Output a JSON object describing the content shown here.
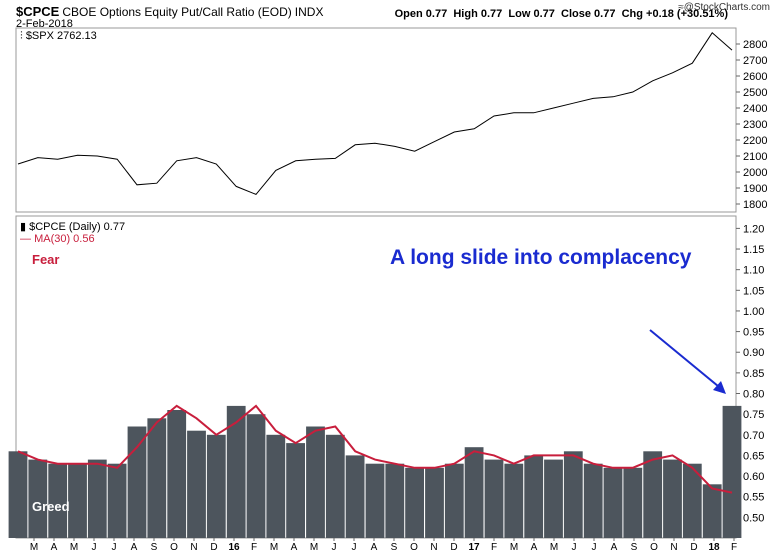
{
  "header": {
    "ticker": "$CPCE",
    "name": "CBOE Options Equity Put/Call Ratio (EOD)",
    "exchange": "INDX",
    "date": "2-Feb-2018",
    "open_label": "Open",
    "open_value": "0.77",
    "high_label": "High",
    "high_value": "0.77",
    "low_label": "Low",
    "low_value": "0.77",
    "close_label": "Close",
    "close_value": "0.77",
    "chg_label": "Chg",
    "chg_value": "+0.18 (+30.51%)",
    "brand": "@StockCharts.com",
    "brand_icon": "stockcharts-wave-icon"
  },
  "top_panel": {
    "legend": "$SPX 2762.13",
    "icon": "bars-icon",
    "line_color": "#000000"
  },
  "bottom_panel": {
    "legend_cpce": "$CPCE (Daily) 0.77",
    "legend_ma": "MA(30) 0.56",
    "icon": "bars-icon",
    "bar_color": "#4d555d",
    "ma_color": "#c81e3c",
    "annotation": "A long slide into complacency",
    "annotation_color": "#1a2bd0",
    "fear_label": "Fear",
    "greed_label": "Greed"
  },
  "x_axis": {
    "tick_labels": [
      "M",
      "A",
      "M",
      "J",
      "J",
      "A",
      "S",
      "O",
      "N",
      "D",
      "16",
      "F",
      "M",
      "A",
      "M",
      "J",
      "J",
      "A",
      "S",
      "O",
      "N",
      "D",
      "17",
      "F",
      "M",
      "A",
      "M",
      "J",
      "J",
      "A",
      "S",
      "O",
      "N",
      "D",
      "18",
      "F"
    ],
    "bold_labels": [
      "16",
      "17",
      "18"
    ]
  },
  "chart_data": [
    {
      "type": "line",
      "title": "$SPX 2762.13",
      "xlabel": "",
      "ylabel": "",
      "ylim": [
        1750,
        2900
      ],
      "yticks": [
        1800,
        1900,
        2000,
        2100,
        2200,
        2300,
        2400,
        2500,
        2600,
        2700,
        2800
      ],
      "grid": false,
      "x": [
        "2015-02",
        "2015-03",
        "2015-04",
        "2015-05",
        "2015-06",
        "2015-07",
        "2015-08",
        "2015-09",
        "2015-10",
        "2015-11",
        "2015-12",
        "2016-01",
        "2016-02",
        "2016-03",
        "2016-04",
        "2016-05",
        "2016-06",
        "2016-07",
        "2016-08",
        "2016-09",
        "2016-10",
        "2016-11",
        "2016-12",
        "2017-01",
        "2017-02",
        "2017-03",
        "2017-04",
        "2017-05",
        "2017-06",
        "2017-07",
        "2017-08",
        "2017-09",
        "2017-10",
        "2017-11",
        "2017-12",
        "2018-01",
        "2018-02"
      ],
      "series": [
        {
          "name": "$SPX",
          "values": [
            2050,
            2090,
            2080,
            2105,
            2100,
            2080,
            1920,
            1930,
            2070,
            2090,
            2050,
            1910,
            1860,
            2010,
            2070,
            2080,
            2085,
            2170,
            2180,
            2160,
            2130,
            2190,
            2250,
            2270,
            2350,
            2370,
            2370,
            2400,
            2430,
            2460,
            2470,
            2500,
            2570,
            2620,
            2680,
            2870,
            2762
          ]
        }
      ]
    },
    {
      "type": "bar",
      "title": "$CPCE (Daily) 0.77",
      "xlabel": "",
      "ylabel": "",
      "ylim": [
        0.45,
        1.23
      ],
      "yticks": [
        0.5,
        0.55,
        0.6,
        0.65,
        0.7,
        0.75,
        0.8,
        0.85,
        0.9,
        0.95,
        1.0,
        1.05,
        1.1,
        1.15,
        1.2
      ],
      "grid": false,
      "x": [
        "2015-02",
        "2015-03",
        "2015-04",
        "2015-05",
        "2015-06",
        "2015-07",
        "2015-08",
        "2015-09",
        "2015-10",
        "2015-11",
        "2015-12",
        "2016-01",
        "2016-02",
        "2016-03",
        "2016-04",
        "2016-05",
        "2016-06",
        "2016-07",
        "2016-08",
        "2016-09",
        "2016-10",
        "2016-11",
        "2016-12",
        "2017-01",
        "2017-02",
        "2017-03",
        "2017-04",
        "2017-05",
        "2017-06",
        "2017-07",
        "2017-08",
        "2017-09",
        "2017-10",
        "2017-11",
        "2017-12",
        "2018-01",
        "2018-02"
      ],
      "series": [
        {
          "name": "$CPCE (Daily)",
          "values": [
            0.66,
            0.64,
            0.63,
            0.63,
            0.64,
            0.63,
            0.72,
            0.74,
            0.76,
            0.71,
            0.7,
            0.77,
            0.75,
            0.7,
            0.68,
            0.72,
            0.7,
            0.65,
            0.63,
            0.63,
            0.62,
            0.62,
            0.63,
            0.67,
            0.64,
            0.63,
            0.65,
            0.64,
            0.66,
            0.63,
            0.62,
            0.62,
            0.66,
            0.64,
            0.63,
            0.58,
            0.77
          ]
        },
        {
          "name": "MA(30)",
          "values": [
            0.66,
            0.64,
            0.63,
            0.63,
            0.63,
            0.62,
            0.67,
            0.73,
            0.77,
            0.74,
            0.7,
            0.73,
            0.77,
            0.71,
            0.68,
            0.71,
            0.72,
            0.66,
            0.64,
            0.63,
            0.62,
            0.62,
            0.63,
            0.66,
            0.65,
            0.63,
            0.65,
            0.65,
            0.65,
            0.63,
            0.62,
            0.62,
            0.64,
            0.65,
            0.62,
            0.57,
            0.56
          ]
        }
      ]
    }
  ]
}
